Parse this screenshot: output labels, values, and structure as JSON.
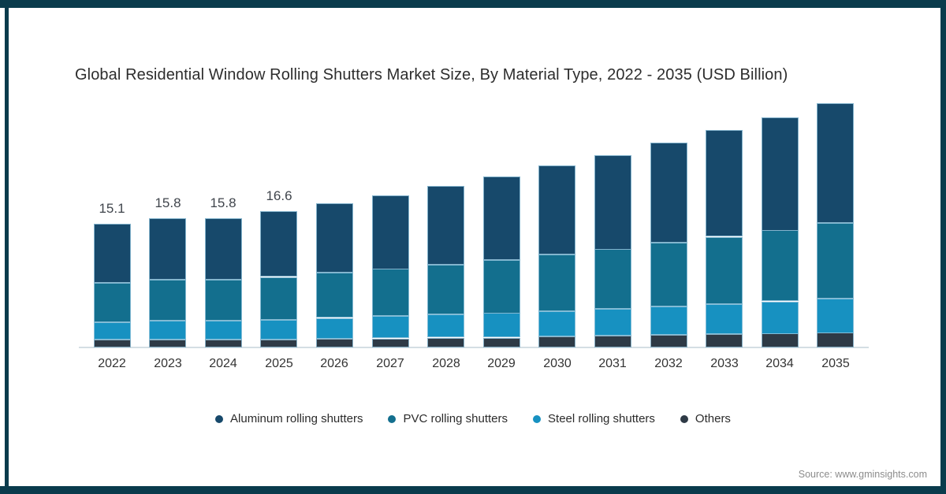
{
  "title": "Global Residential Window Rolling Shutters Market Size, By Material Type, 2022 - 2035 (USD Billion)",
  "source": "Source: www.gminsights.com",
  "colors": {
    "frame": "#0A3B4C",
    "axis_line": "#D4DEE4",
    "segment_stroke": "#96C6DD",
    "data_label": "#40454C"
  },
  "chart_data": {
    "type": "bar",
    "subtype": "stacked",
    "title": "Global Residential Window Rolling Shutters Market Size, By Material Type, 2022 - 2035 (USD Billion)",
    "xlabel": "",
    "ylabel": "USD Billion",
    "gridlines": false,
    "y_axis_shown": false,
    "legend_position": "bottom",
    "categories": [
      "2022",
      "2023",
      "2024",
      "2025",
      "2026",
      "2027",
      "2028",
      "2029",
      "2030",
      "2031",
      "2032",
      "2033",
      "2034",
      "2035"
    ],
    "series": [
      {
        "name": "Aluminum rolling shutters",
        "color": "#17496B",
        "values": [
          7.2,
          7.5,
          7.5,
          8.0,
          8.5,
          9.0,
          9.6,
          10.2,
          10.9,
          11.5,
          12.2,
          13.0,
          13.8,
          14.6
        ]
      },
      {
        "name": "PVC rolling shutters",
        "color": "#136F8E",
        "values": [
          4.8,
          5.0,
          5.0,
          5.2,
          5.5,
          5.8,
          6.1,
          6.5,
          6.9,
          7.3,
          7.8,
          8.2,
          8.7,
          9.2
        ]
      },
      {
        "name": "Steel rolling shutters",
        "color": "#1791C1",
        "values": [
          2.1,
          2.3,
          2.3,
          2.4,
          2.5,
          2.7,
          2.8,
          3.0,
          3.1,
          3.3,
          3.5,
          3.7,
          3.9,
          4.2
        ]
      },
      {
        "name": "Others",
        "color": "#2E3A46",
        "values": [
          1.0,
          1.0,
          1.0,
          1.0,
          1.1,
          1.1,
          1.2,
          1.2,
          1.3,
          1.4,
          1.5,
          1.6,
          1.7,
          1.8
        ]
      }
    ],
    "stack_order_bottom_to_top": [
      "Others",
      "Steel rolling shutters",
      "PVC rolling shutters",
      "Aluminum rolling shutters"
    ],
    "totals": [
      15.1,
      15.8,
      15.8,
      16.6,
      17.6,
      18.6,
      19.7,
      20.9,
      22.2,
      23.5,
      25.0,
      26.5,
      28.1,
      29.8
    ],
    "total_labels_shown": [
      "15.1",
      "15.8",
      "15.8",
      "16.6",
      null,
      null,
      null,
      null,
      null,
      null,
      null,
      null,
      null,
      null
    ]
  }
}
